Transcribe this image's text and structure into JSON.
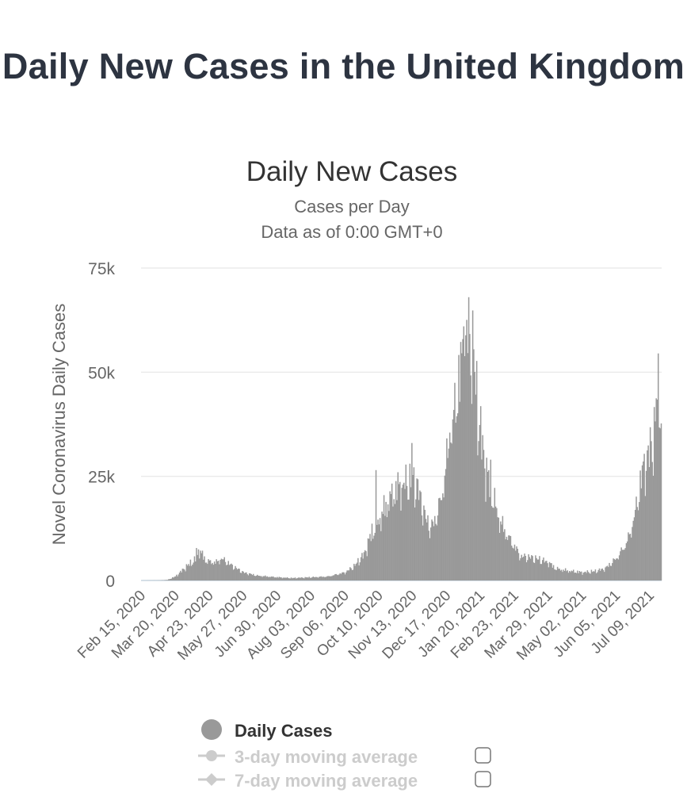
{
  "page": {
    "title": "Daily New Cases in the United Kingdom"
  },
  "chart_data": {
    "type": "bar",
    "title": "Daily New Cases",
    "subtitle": "Cases per Day",
    "subtitle2": "Data as of 0:00 GMT+0",
    "ylabel": "Novel Coronavirus Daily Cases",
    "ylim": [
      0,
      75000
    ],
    "yticks": [
      0,
      25000,
      50000,
      75000
    ],
    "ytick_labels": [
      "0",
      "25k",
      "50k",
      "75k"
    ],
    "x_start": "2020-02-15",
    "x_end": "2021-07-20",
    "xtick_labels": [
      "Feb 15, 2020",
      "Mar 20, 2020",
      "Apr 23, 2020",
      "May 27, 2020",
      "Jun 30, 2020",
      "Aug 03, 2020",
      "Sep 06, 2020",
      "Oct 10, 2020",
      "Nov 13, 2020",
      "Dec 17, 2020",
      "Jan 20, 2021",
      "Feb 23, 2021",
      "Mar 29, 2021",
      "May 02, 2021",
      "Jun 05, 2021",
      "Jul 09, 2021"
    ],
    "grid": true,
    "bar_color": "#999999",
    "keypoints": [
      [
        "2020-02-15",
        0
      ],
      [
        "2020-03-05",
        30
      ],
      [
        "2020-03-12",
        150
      ],
      [
        "2020-03-20",
        1000
      ],
      [
        "2020-03-28",
        2800
      ],
      [
        "2020-04-05",
        4500
      ],
      [
        "2020-04-10",
        5200
      ],
      [
        "2020-04-12",
        7800
      ],
      [
        "2020-04-20",
        4800
      ],
      [
        "2020-04-30",
        4500
      ],
      [
        "2020-05-05",
        5500
      ],
      [
        "2020-05-15",
        3800
      ],
      [
        "2020-05-27",
        2000
      ],
      [
        "2020-06-10",
        1200
      ],
      [
        "2020-06-30",
        800
      ],
      [
        "2020-07-15",
        600
      ],
      [
        "2020-08-03",
        800
      ],
      [
        "2020-08-20",
        1000
      ],
      [
        "2020-09-06",
        2000
      ],
      [
        "2020-09-15",
        3500
      ],
      [
        "2020-09-25",
        6500
      ],
      [
        "2020-10-03",
        12000
      ],
      [
        "2020-10-10",
        15000
      ],
      [
        "2020-10-20",
        20000
      ],
      [
        "2020-10-28",
        23000
      ],
      [
        "2020-11-05",
        24000
      ],
      [
        "2020-11-13",
        25000
      ],
      [
        "2020-11-18",
        23000
      ],
      [
        "2020-11-25",
        16000
      ],
      [
        "2020-12-01",
        13000
      ],
      [
        "2020-12-06",
        15500
      ],
      [
        "2020-12-12",
        21000
      ],
      [
        "2020-12-17",
        30000
      ],
      [
        "2020-12-22",
        37000
      ],
      [
        "2020-12-29",
        50000
      ],
      [
        "2021-01-04",
        58000
      ],
      [
        "2021-01-08",
        65000
      ],
      [
        "2021-01-12",
        55000
      ],
      [
        "2021-01-18",
        40000
      ],
      [
        "2021-01-25",
        28000
      ],
      [
        "2021-02-01",
        21000
      ],
      [
        "2021-02-08",
        15000
      ],
      [
        "2021-02-15",
        11500
      ],
      [
        "2021-02-23",
        8500
      ],
      [
        "2021-03-01",
        6000
      ],
      [
        "2021-03-10",
        5800
      ],
      [
        "2021-03-20",
        5200
      ],
      [
        "2021-03-29",
        4500
      ],
      [
        "2021-04-05",
        3000
      ],
      [
        "2021-04-15",
        2500
      ],
      [
        "2021-04-25",
        2200
      ],
      [
        "2021-05-02",
        2000
      ],
      [
        "2021-05-15",
        2300
      ],
      [
        "2021-05-25",
        3000
      ],
      [
        "2021-06-05",
        5500
      ],
      [
        "2021-06-12",
        8000
      ],
      [
        "2021-06-18",
        11000
      ],
      [
        "2021-06-25",
        18000
      ],
      [
        "2021-07-01",
        27000
      ],
      [
        "2021-07-08",
        32000
      ],
      [
        "2021-07-13",
        36000
      ],
      [
        "2021-07-16",
        48000
      ],
      [
        "2021-07-17",
        54000
      ],
      [
        "2021-07-20",
        40000
      ]
    ],
    "spikes": [
      [
        "2020-04-10",
        7800
      ],
      [
        "2020-10-07",
        26500
      ],
      [
        "2020-11-12",
        33000
      ],
      [
        "2021-01-08",
        68000
      ],
      [
        "2021-01-13",
        55500
      ],
      [
        "2021-01-03",
        61000
      ],
      [
        "2020-12-20",
        35500
      ],
      [
        "2021-01-30",
        29000
      ],
      [
        "2021-07-17",
        54500
      ]
    ]
  },
  "legend": {
    "items": [
      {
        "label": "Daily Cases",
        "enabled": true
      },
      {
        "label": "3-day moving average",
        "enabled": false
      },
      {
        "label": "7-day moving average",
        "enabled": false
      }
    ]
  }
}
